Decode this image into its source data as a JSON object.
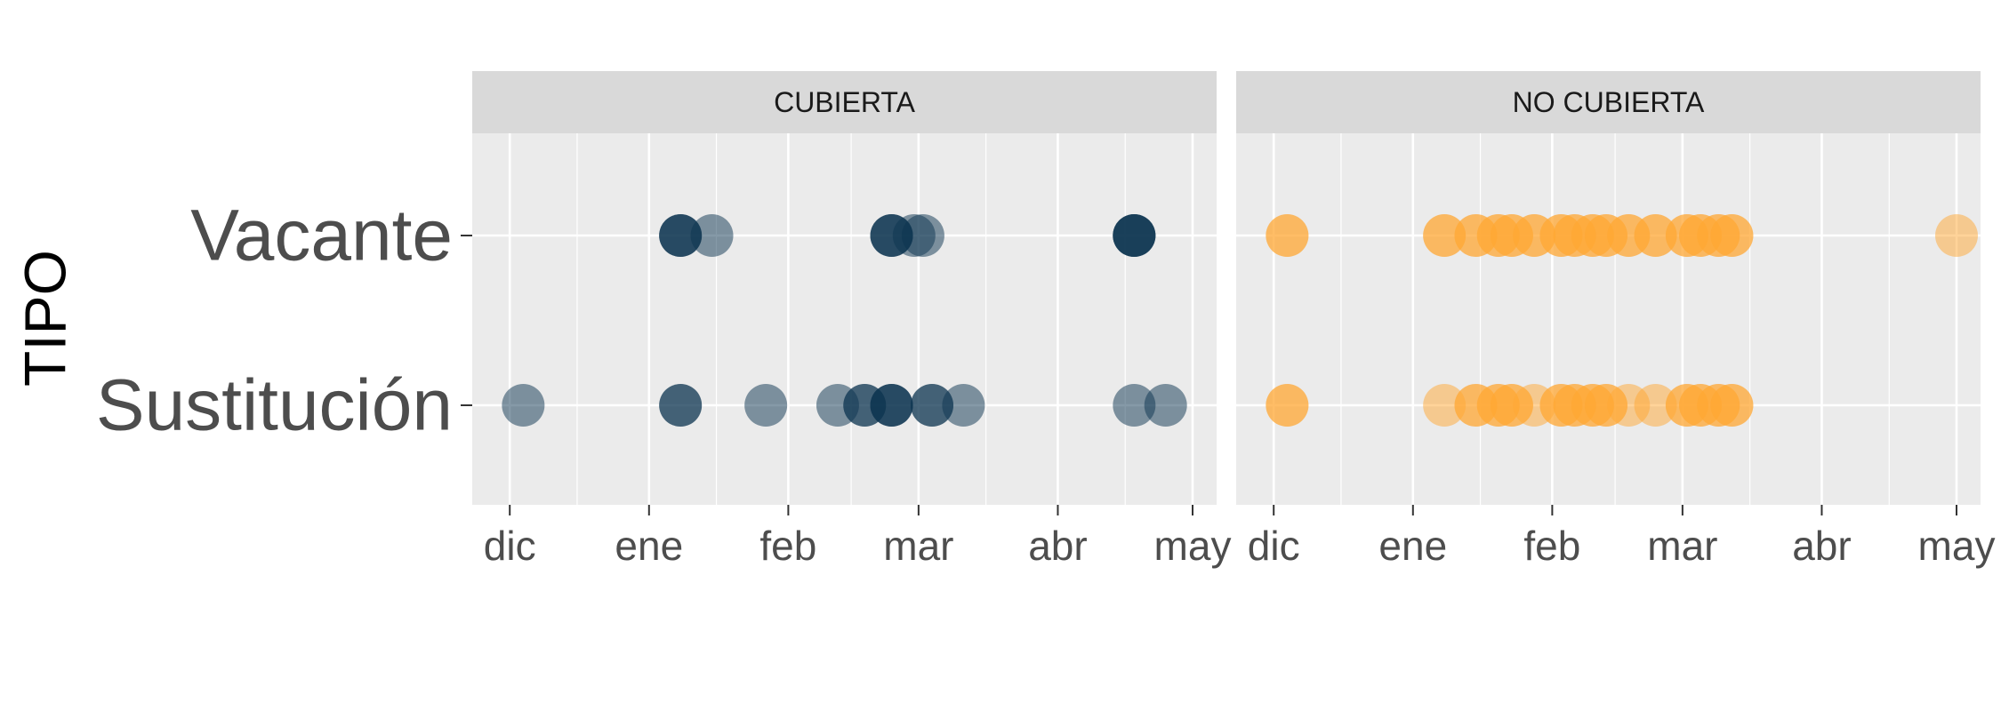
{
  "chart_data": {
    "type": "scatter",
    "xlabel": "",
    "ylabel": "TIPO",
    "x_axis": {
      "type": "date",
      "range": [
        "2019-11-27",
        "2020-05-01"
      ],
      "ticks": [
        {
          "date": "2019-12-01",
          "label": "dic"
        },
        {
          "date": "2020-01-01",
          "label": "ene"
        },
        {
          "date": "2020-02-01",
          "label": "feb"
        },
        {
          "date": "2020-03-01",
          "label": "mar"
        },
        {
          "date": "2020-04-01",
          "label": "abr"
        },
        {
          "date": "2020-05-01",
          "label": "may"
        }
      ]
    },
    "y_categories": [
      "Vacante",
      "Sustitución"
    ],
    "legend": "none",
    "grid": true,
    "point_alpha": 0.5,
    "panels": [
      {
        "label": "CUBIERTA",
        "color": "#0b3350",
        "points": [
          {
            "date": "2020-01-08",
            "tipo": "Vacante",
            "count": 3
          },
          {
            "date": "2020-01-15",
            "tipo": "Vacante",
            "count": 1
          },
          {
            "date": "2020-02-24",
            "tipo": "Vacante",
            "count": 3
          },
          {
            "date": "2020-02-29",
            "tipo": "Vacante",
            "count": 1
          },
          {
            "date": "2020-03-02",
            "tipo": "Vacante",
            "count": 1
          },
          {
            "date": "2020-04-18",
            "tipo": "Vacante",
            "count": 4
          },
          {
            "date": "2019-12-04",
            "tipo": "Sustitución",
            "count": 1
          },
          {
            "date": "2020-01-08",
            "tipo": "Sustitución",
            "count": 2
          },
          {
            "date": "2020-01-27",
            "tipo": "Sustitución",
            "count": 1
          },
          {
            "date": "2020-02-12",
            "tipo": "Sustitución",
            "count": 1
          },
          {
            "date": "2020-02-18",
            "tipo": "Sustitución",
            "count": 2
          },
          {
            "date": "2020-02-24",
            "tipo": "Sustitución",
            "count": 3
          },
          {
            "date": "2020-03-04",
            "tipo": "Sustitución",
            "count": 2
          },
          {
            "date": "2020-03-11",
            "tipo": "Sustitución",
            "count": 1
          },
          {
            "date": "2020-04-18",
            "tipo": "Sustitución",
            "count": 1
          },
          {
            "date": "2020-04-25",
            "tipo": "Sustitución",
            "count": 1
          }
        ]
      },
      {
        "label": "NO CUBIERTA",
        "color": "#ffa733",
        "points": [
          {
            "date": "2019-12-04",
            "tipo": "Vacante",
            "count": 2
          },
          {
            "date": "2020-01-08",
            "tipo": "Vacante",
            "count": 2
          },
          {
            "date": "2020-01-15",
            "tipo": "Vacante",
            "count": 2
          },
          {
            "date": "2020-01-20",
            "tipo": "Vacante",
            "count": 2
          },
          {
            "date": "2020-01-23",
            "tipo": "Vacante",
            "count": 2
          },
          {
            "date": "2020-01-28",
            "tipo": "Vacante",
            "count": 2
          },
          {
            "date": "2020-02-03",
            "tipo": "Vacante",
            "count": 2
          },
          {
            "date": "2020-02-06",
            "tipo": "Vacante",
            "count": 2
          },
          {
            "date": "2020-02-10",
            "tipo": "Vacante",
            "count": 2
          },
          {
            "date": "2020-02-13",
            "tipo": "Vacante",
            "count": 2
          },
          {
            "date": "2020-02-18",
            "tipo": "Vacante",
            "count": 2
          },
          {
            "date": "2020-02-24",
            "tipo": "Vacante",
            "count": 2
          },
          {
            "date": "2020-03-02",
            "tipo": "Vacante",
            "count": 2
          },
          {
            "date": "2020-03-05",
            "tipo": "Vacante",
            "count": 2
          },
          {
            "date": "2020-03-09",
            "tipo": "Vacante",
            "count": 2
          },
          {
            "date": "2020-03-12",
            "tipo": "Vacante",
            "count": 2
          },
          {
            "date": "2020-05-01",
            "tipo": "Vacante",
            "count": 1
          },
          {
            "date": "2019-12-04",
            "tipo": "Sustitución",
            "count": 2
          },
          {
            "date": "2020-01-08",
            "tipo": "Sustitución",
            "count": 1
          },
          {
            "date": "2020-01-15",
            "tipo": "Sustitución",
            "count": 2
          },
          {
            "date": "2020-01-20",
            "tipo": "Sustitución",
            "count": 2
          },
          {
            "date": "2020-01-23",
            "tipo": "Sustitución",
            "count": 2
          },
          {
            "date": "2020-01-28",
            "tipo": "Sustitución",
            "count": 1
          },
          {
            "date": "2020-02-03",
            "tipo": "Sustitución",
            "count": 2
          },
          {
            "date": "2020-02-06",
            "tipo": "Sustitución",
            "count": 2
          },
          {
            "date": "2020-02-10",
            "tipo": "Sustitución",
            "count": 2
          },
          {
            "date": "2020-02-13",
            "tipo": "Sustitución",
            "count": 2
          },
          {
            "date": "2020-02-18",
            "tipo": "Sustitución",
            "count": 1
          },
          {
            "date": "2020-02-24",
            "tipo": "Sustitución",
            "count": 1
          },
          {
            "date": "2020-03-02",
            "tipo": "Sustitución",
            "count": 2
          },
          {
            "date": "2020-03-05",
            "tipo": "Sustitución",
            "count": 2
          },
          {
            "date": "2020-03-09",
            "tipo": "Sustitución",
            "count": 2
          },
          {
            "date": "2020-03-12",
            "tipo": "Sustitución",
            "count": 2
          }
        ]
      }
    ]
  }
}
